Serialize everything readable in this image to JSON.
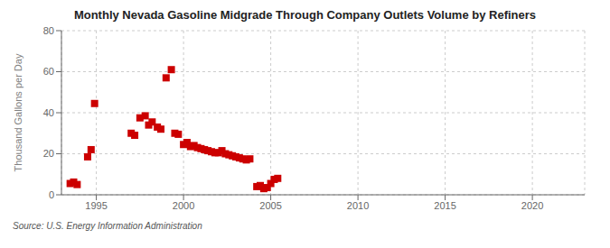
{
  "chart_data": {
    "type": "scatter",
    "title": "Monthly Nevada Gasoline Midgrade Through Company Outlets Volume by Refiners",
    "y_label": "Thousand Gallons per Day",
    "annotations": [
      "Source: U.S. Energy Information Administration"
    ],
    "color": "#cc0000",
    "marker": "square",
    "grid": true,
    "xlim": [
      1993.0,
      2023.0
    ],
    "ylim": [
      0,
      80
    ],
    "xticks": [
      1995,
      2000,
      2005,
      2010,
      2015,
      2020
    ],
    "yticks": [
      0,
      20,
      40,
      60,
      80
    ],
    "x": [
      1993.5,
      1993.7,
      1993.9,
      1994.5,
      1994.7,
      1994.9,
      1997.0,
      1997.2,
      1997.5,
      1997.8,
      1998.0,
      1998.2,
      1998.5,
      1998.7,
      1999.0,
      1999.3,
      1999.5,
      1999.7,
      2000.0,
      2000.2,
      2000.4,
      2000.6,
      2000.8,
      2001.0,
      2001.2,
      2001.4,
      2001.6,
      2001.8,
      2002.0,
      2002.2,
      2002.4,
      2002.6,
      2002.8,
      2003.0,
      2003.2,
      2003.4,
      2003.6,
      2003.8,
      2004.2,
      2004.4,
      2004.6,
      2004.8,
      2005.0,
      2005.2,
      2005.4
    ],
    "values": [
      5.5,
      6.2,
      5.0,
      18.5,
      22.0,
      44.5,
      30.0,
      29.0,
      37.5,
      38.5,
      34.0,
      35.5,
      33.0,
      32.0,
      57.0,
      61.0,
      30.0,
      29.5,
      24.5,
      25.5,
      23.5,
      24.0,
      23.0,
      22.5,
      22.0,
      21.5,
      21.0,
      20.5,
      20.5,
      21.5,
      20.0,
      19.5,
      19.0,
      18.5,
      18.0,
      17.5,
      17.0,
      17.5,
      4.0,
      4.5,
      3.0,
      3.5,
      5.5,
      7.5,
      8.0
    ]
  }
}
